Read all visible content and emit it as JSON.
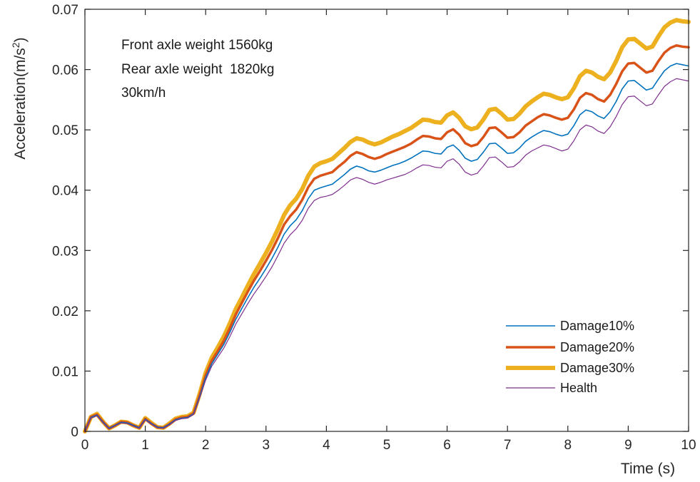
{
  "chart_data": {
    "type": "line",
    "title": "",
    "xlabel": "Time (s)",
    "ylabel": "Acceleration(m/s2)",
    "ylabel_base": "Acceleration(m/s",
    "ylabel_sup": "2",
    "ylabel_close": ")",
    "xlim": [
      0,
      10
    ],
    "ylim": [
      0,
      0.07
    ],
    "xticks": [
      0,
      1,
      2,
      3,
      4,
      5,
      6,
      7,
      8,
      9,
      10
    ],
    "xtick_labels": [
      "0",
      "1",
      "2",
      "3",
      "4",
      "5",
      "6",
      "7",
      "8",
      "9",
      "10"
    ],
    "yticks": [
      0,
      0.01,
      0.02,
      0.03,
      0.04,
      0.05,
      0.06,
      0.07
    ],
    "ytick_labels": [
      "0",
      "0.01",
      "0.02",
      "0.03",
      "0.04",
      "0.05",
      "0.06",
      "0.07"
    ],
    "grid": false,
    "legend_position": "bottom-right",
    "annotations": [
      "Front axle weight 1560kg",
      "Rear axle weight  1820kg",
      "30km/h"
    ],
    "x": [
      0,
      0.1,
      0.2,
      0.3,
      0.4,
      0.5,
      0.6,
      0.7,
      0.8,
      0.9,
      1.0,
      1.1,
      1.2,
      1.3,
      1.4,
      1.5,
      1.6,
      1.7,
      1.8,
      1.9,
      2.0,
      2.1,
      2.2,
      2.3,
      2.4,
      2.5,
      2.6,
      2.7,
      2.8,
      2.9,
      3.0,
      3.1,
      3.2,
      3.3,
      3.4,
      3.5,
      3.6,
      3.7,
      3.8,
      3.9,
      4.0,
      4.1,
      4.2,
      4.3,
      4.4,
      4.5,
      4.6,
      4.7,
      4.8,
      4.9,
      5.0,
      5.1,
      5.2,
      5.3,
      5.4,
      5.5,
      5.6,
      5.7,
      5.8,
      5.9,
      6.0,
      6.1,
      6.2,
      6.3,
      6.4,
      6.5,
      6.6,
      6.7,
      6.8,
      6.9,
      7.0,
      7.1,
      7.2,
      7.3,
      7.4,
      7.5,
      7.6,
      7.7,
      7.8,
      7.9,
      8.0,
      8.1,
      8.2,
      8.3,
      8.4,
      8.5,
      8.6,
      8.7,
      8.8,
      8.9,
      9.0,
      9.1,
      9.2,
      9.3,
      9.4,
      9.5,
      9.6,
      9.7,
      9.8,
      9.9,
      10.0
    ],
    "series": [
      {
        "name": "Health",
        "color": "#7E2F8E",
        "width": 1.2,
        "values": [
          0,
          0.0022,
          0.0026,
          0.0014,
          0.0004,
          0.0009,
          0.0014,
          0.0013,
          0.0009,
          0.0005,
          0.0019,
          0.0012,
          0.0006,
          0.0005,
          0.0011,
          0.0018,
          0.0021,
          0.0022,
          0.0028,
          0.0055,
          0.0085,
          0.0108,
          0.0123,
          0.0138,
          0.0157,
          0.0178,
          0.0195,
          0.0212,
          0.0228,
          0.0242,
          0.0257,
          0.0273,
          0.0292,
          0.0312,
          0.0326,
          0.0336,
          0.035,
          0.037,
          0.0383,
          0.0388,
          0.039,
          0.0393,
          0.04,
          0.0408,
          0.0417,
          0.0421,
          0.0418,
          0.0413,
          0.041,
          0.0413,
          0.0417,
          0.042,
          0.0423,
          0.0426,
          0.0431,
          0.0437,
          0.0442,
          0.0441,
          0.0438,
          0.0437,
          0.0448,
          0.0452,
          0.0443,
          0.043,
          0.0425,
          0.0428,
          0.044,
          0.0454,
          0.0455,
          0.0447,
          0.0438,
          0.0439,
          0.0447,
          0.0458,
          0.0465,
          0.047,
          0.0475,
          0.0473,
          0.0469,
          0.0465,
          0.0468,
          0.0482,
          0.05,
          0.0508,
          0.0505,
          0.0498,
          0.0494,
          0.0505,
          0.0522,
          0.0542,
          0.0555,
          0.0556,
          0.0548,
          0.054,
          0.0543,
          0.0558,
          0.0572,
          0.058,
          0.0585,
          0.0583,
          0.0581
        ]
      },
      {
        "name": "Damage10%",
        "color": "#0072BD",
        "width": 1.6,
        "values": [
          0,
          0.0023,
          0.0027,
          0.0015,
          0.0005,
          0.001,
          0.0015,
          0.0014,
          0.001,
          0.0006,
          0.002,
          0.0013,
          0.0007,
          0.0006,
          0.0012,
          0.0019,
          0.0022,
          0.0023,
          0.0029,
          0.0057,
          0.0089,
          0.0112,
          0.0128,
          0.0144,
          0.0164,
          0.0186,
          0.0204,
          0.0222,
          0.0239,
          0.0254,
          0.027,
          0.0287,
          0.0306,
          0.0327,
          0.0341,
          0.0351,
          0.0366,
          0.0386,
          0.04,
          0.0404,
          0.0407,
          0.041,
          0.0418,
          0.0426,
          0.0435,
          0.044,
          0.0437,
          0.0432,
          0.043,
          0.0433,
          0.0437,
          0.0441,
          0.0444,
          0.0448,
          0.0453,
          0.0459,
          0.0465,
          0.0464,
          0.0461,
          0.046,
          0.0471,
          0.0475,
          0.0466,
          0.0453,
          0.0448,
          0.0451,
          0.0463,
          0.0477,
          0.0478,
          0.047,
          0.0461,
          0.0462,
          0.047,
          0.0481,
          0.0488,
          0.0494,
          0.0499,
          0.0497,
          0.0493,
          0.049,
          0.0493,
          0.0507,
          0.0525,
          0.0533,
          0.053,
          0.0523,
          0.0519,
          0.053,
          0.0547,
          0.0568,
          0.0581,
          0.0582,
          0.0574,
          0.0566,
          0.0569,
          0.0584,
          0.0598,
          0.0606,
          0.061,
          0.0608,
          0.0606
        ]
      },
      {
        "name": "Damage20%",
        "color": "#D95319",
        "width": 3.5,
        "values": [
          0,
          0.0024,
          0.0028,
          0.0016,
          0.0005,
          0.001,
          0.0016,
          0.0015,
          0.001,
          0.0006,
          0.0021,
          0.0013,
          0.0007,
          0.0006,
          0.0012,
          0.002,
          0.0023,
          0.0024,
          0.003,
          0.006,
          0.0093,
          0.0117,
          0.0133,
          0.015,
          0.0171,
          0.0194,
          0.0213,
          0.0232,
          0.025,
          0.0266,
          0.0283,
          0.0301,
          0.0321,
          0.0343,
          0.0357,
          0.0368,
          0.0384,
          0.0405,
          0.0419,
          0.0424,
          0.0427,
          0.043,
          0.0439,
          0.0447,
          0.0457,
          0.0463,
          0.046,
          0.0455,
          0.0452,
          0.0455,
          0.046,
          0.0464,
          0.0468,
          0.0472,
          0.0477,
          0.0484,
          0.049,
          0.0489,
          0.0486,
          0.0485,
          0.0496,
          0.0501,
          0.0492,
          0.0478,
          0.0473,
          0.0476,
          0.0488,
          0.0503,
          0.0504,
          0.0496,
          0.0487,
          0.0488,
          0.0496,
          0.0507,
          0.0514,
          0.0521,
          0.0526,
          0.0524,
          0.052,
          0.0517,
          0.052,
          0.0534,
          0.0553,
          0.0561,
          0.0558,
          0.0551,
          0.0547,
          0.0558,
          0.0576,
          0.0597,
          0.061,
          0.0611,
          0.0603,
          0.0595,
          0.0598,
          0.0614,
          0.0628,
          0.0636,
          0.064,
          0.0638,
          0.0637
        ]
      },
      {
        "name": "Damage30%",
        "color": "#EDB120",
        "width": 6,
        "values": [
          0,
          0.0024,
          0.0029,
          0.0016,
          0.0005,
          0.001,
          0.0016,
          0.0015,
          0.001,
          0.0006,
          0.0022,
          0.0014,
          0.0007,
          0.0006,
          0.0013,
          0.0021,
          0.0024,
          0.0025,
          0.0031,
          0.0062,
          0.0097,
          0.0122,
          0.0139,
          0.0157,
          0.0179,
          0.0203,
          0.0222,
          0.0242,
          0.0261,
          0.0278,
          0.0296,
          0.0315,
          0.0336,
          0.0359,
          0.0375,
          0.0386,
          0.0402,
          0.0424,
          0.0439,
          0.0445,
          0.0448,
          0.0452,
          0.0461,
          0.047,
          0.048,
          0.0486,
          0.0484,
          0.0479,
          0.0476,
          0.0479,
          0.0484,
          0.0489,
          0.0493,
          0.0498,
          0.0503,
          0.051,
          0.0517,
          0.0516,
          0.0513,
          0.0512,
          0.0524,
          0.0529,
          0.052,
          0.0506,
          0.0501,
          0.0504,
          0.0517,
          0.0533,
          0.0535,
          0.0527,
          0.0517,
          0.0518,
          0.0527,
          0.0539,
          0.0547,
          0.0554,
          0.056,
          0.0558,
          0.0554,
          0.0551,
          0.0554,
          0.0569,
          0.0589,
          0.0598,
          0.0595,
          0.0588,
          0.0584,
          0.0595,
          0.0614,
          0.0637,
          0.065,
          0.0651,
          0.0643,
          0.0635,
          0.0638,
          0.0655,
          0.067,
          0.0678,
          0.0682,
          0.068,
          0.0679
        ]
      }
    ],
    "legend_order": [
      "Damage10%",
      "Damage20%",
      "Damage30%",
      "Health"
    ]
  }
}
